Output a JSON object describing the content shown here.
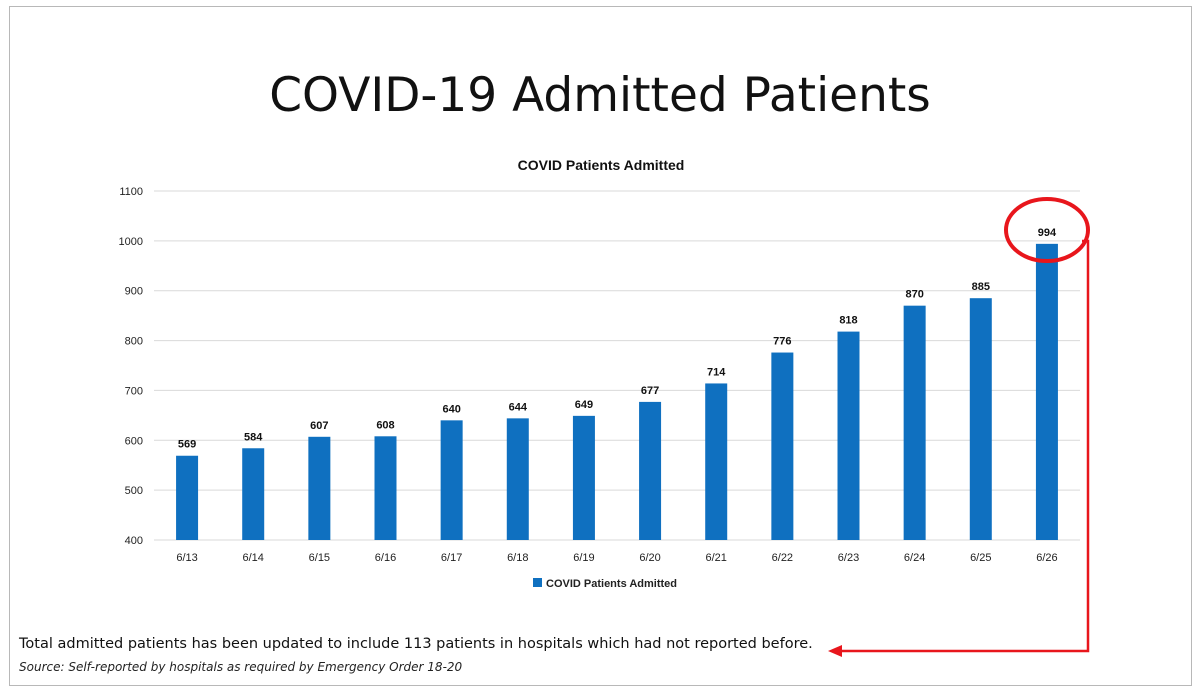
{
  "page": {
    "title": "COVID-19 Admitted Patients",
    "note": "Total admitted patients has been updated to include 113 patients in hospitals which had not reported before.",
    "source": "Source: Self-reported by hospitals as required by Emergency Order 18-20"
  },
  "colors": {
    "bar": "#0f70c0",
    "highlight": "#e8161c",
    "grid": "#d9d9d9"
  },
  "chart_data": {
    "type": "bar",
    "title": "COVID Patients Admitted",
    "categories": [
      "6/13",
      "6/14",
      "6/15",
      "6/16",
      "6/17",
      "6/18",
      "6/19",
      "6/20",
      "6/21",
      "6/22",
      "6/23",
      "6/24",
      "6/25",
      "6/26"
    ],
    "series": [
      {
        "name": "COVID Patients Admitted",
        "values": [
          569,
          584,
          607,
          608,
          640,
          644,
          649,
          677,
          714,
          776,
          818,
          870,
          885,
          994
        ]
      }
    ],
    "ylim": [
      400,
      1100
    ],
    "yticks": [
      400,
      500,
      600,
      700,
      800,
      900,
      1000,
      1100
    ],
    "grid": true,
    "legend": "bottom-center",
    "highlighted_category": "6/26"
  }
}
